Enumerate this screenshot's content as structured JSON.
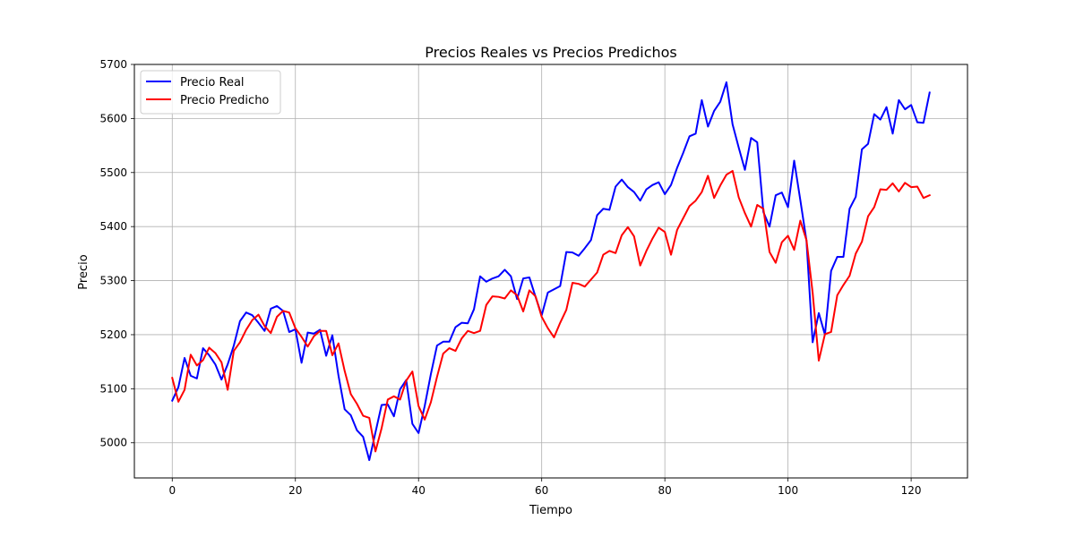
{
  "chart_data": {
    "type": "line",
    "title": "Precios Reales vs Precios Predichos",
    "xlabel": "Tiempo",
    "ylabel": "Precio",
    "xlim": [
      -6.15,
      129.15
    ],
    "ylim": [
      4935,
      5700
    ],
    "xticks": [
      0,
      20,
      40,
      60,
      80,
      100,
      120
    ],
    "yticks": [
      5000,
      5100,
      5200,
      5300,
      5400,
      5500,
      5600,
      5700
    ],
    "grid": true,
    "legend_position": "top-left",
    "series": [
      {
        "name": "Precio Real",
        "color": "#0000ff",
        "values": [
          5078,
          5103,
          5157,
          5124,
          5119,
          5175,
          5162,
          5145,
          5117,
          5145,
          5180,
          5225,
          5241,
          5236,
          5222,
          5207,
          5248,
          5253,
          5244,
          5205,
          5210,
          5148,
          5204,
          5202,
          5209,
          5161,
          5199,
          5124,
          5062,
          5051,
          5023,
          5011,
          4968,
          5019,
          5070,
          5071,
          5049,
          5099,
          5116,
          5035,
          5018,
          5068,
          5127,
          5180,
          5187,
          5187,
          5214,
          5222,
          5221,
          5247,
          5308,
          5298,
          5304,
          5308,
          5320,
          5308,
          5266,
          5304,
          5306,
          5270,
          5236,
          5278,
          5284,
          5290,
          5353,
          5352,
          5346,
          5360,
          5375,
          5421,
          5433,
          5431,
          5474,
          5487,
          5473,
          5464,
          5448,
          5469,
          5477,
          5482,
          5460,
          5477,
          5509,
          5537,
          5567,
          5572,
          5634,
          5585,
          5614,
          5631,
          5667,
          5589,
          5546,
          5505,
          5564,
          5556,
          5427,
          5400,
          5458,
          5463,
          5436,
          5522,
          5449,
          5374,
          5186,
          5240,
          5200,
          5318,
          5344,
          5344,
          5433,
          5455,
          5543,
          5553,
          5608,
          5598,
          5621,
          5572,
          5634,
          5617,
          5625,
          5593,
          5592,
          5648
        ]
      },
      {
        "name": "Precio Predicho",
        "color": "#ff0000",
        "values": [
          5120,
          5076,
          5098,
          5163,
          5143,
          5153,
          5176,
          5166,
          5149,
          5098,
          5170,
          5186,
          5209,
          5227,
          5237,
          5216,
          5203,
          5233,
          5244,
          5241,
          5212,
          5196,
          5178,
          5197,
          5207,
          5207,
          5162,
          5184,
          5133,
          5090,
          5072,
          5050,
          5046,
          4984,
          5027,
          5080,
          5086,
          5080,
          5115,
          5132,
          5068,
          5043,
          5075,
          5122,
          5165,
          5175,
          5170,
          5193,
          5207,
          5203,
          5207,
          5255,
          5271,
          5270,
          5267,
          5282,
          5273,
          5243,
          5282,
          5271,
          5233,
          5212,
          5195,
          5222,
          5246,
          5296,
          5294,
          5289,
          5302,
          5315,
          5348,
          5355,
          5351,
          5384,
          5399,
          5382,
          5328,
          5355,
          5378,
          5398,
          5390,
          5348,
          5394,
          5416,
          5438,
          5448,
          5464,
          5494,
          5453,
          5476,
          5496,
          5503,
          5454,
          5425,
          5400,
          5440,
          5433,
          5353,
          5333,
          5371,
          5383,
          5357,
          5411,
          5375,
          5278,
          5152,
          5201,
          5205,
          5273,
          5292,
          5309,
          5350,
          5372,
          5419,
          5436,
          5469,
          5468,
          5480,
          5465,
          5481,
          5473,
          5474,
          5453,
          5458
        ]
      }
    ]
  }
}
